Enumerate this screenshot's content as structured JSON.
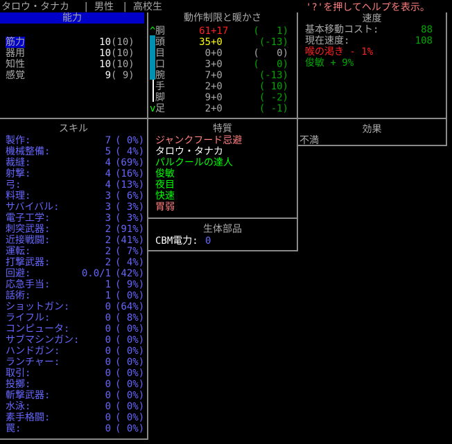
{
  "header": {
    "name": "タロウ・タナカ",
    "gender": "男性",
    "profession": "高校生",
    "separator": "|",
    "help": "'?'を押してヘルプを表示。"
  },
  "stats": {
    "title": "能力",
    "items": [
      {
        "label": "筋力",
        "value": "10",
        "base": "(10)",
        "selected": true
      },
      {
        "label": "器用",
        "value": "10",
        "base": "(10)"
      },
      {
        "label": "知性",
        "value": "10",
        "base": "(10)"
      },
      {
        "label": "感覚",
        "value": "9",
        "base": "( 9)"
      }
    ]
  },
  "encumbrance": {
    "title": "動作制限と暖かさ",
    "scroll_up": "^",
    "scroll_down": "v",
    "items": [
      {
        "part": "胴",
        "enc": "61",
        "layer": "+17",
        "warmth": "(   1)",
        "enc_color": "red",
        "warmth_color": "dgreen"
      },
      {
        "part": "頭",
        "enc": "35",
        "layer": "+0",
        "warmth": "(-13)",
        "enc_color": "yellow",
        "warmth_color": "dgreen"
      },
      {
        "part": "目",
        "enc": "0",
        "layer": "+0",
        "warmth": "(   0)",
        "enc_color": "gray",
        "warmth_color": "gray"
      },
      {
        "part": "口",
        "enc": "3",
        "layer": "+0",
        "warmth": "(   0)",
        "enc_color": "gray",
        "warmth_color": "dgreen"
      },
      {
        "part": "腕",
        "enc": "7",
        "layer": "+0",
        "warmth": "(-13)",
        "enc_color": "gray",
        "warmth_color": "dgreen"
      },
      {
        "part": "手",
        "enc": "2",
        "layer": "+0",
        "warmth": "( 10)",
        "enc_color": "gray",
        "warmth_color": "dgreen"
      },
      {
        "part": "脚",
        "enc": "9",
        "layer": "+0",
        "warmth": "( -2)",
        "enc_color": "gray",
        "warmth_color": "dgreen"
      },
      {
        "part": "足",
        "enc": "2",
        "layer": "+0",
        "warmth": "( -1)",
        "enc_color": "gray",
        "warmth_color": "dgreen"
      }
    ]
  },
  "speed": {
    "title": "速度",
    "base_label": "基本移動コスト:",
    "base_value": "88",
    "current_label": "現在速度:",
    "current_value": "108",
    "modifiers": [
      {
        "text": "喉の渇き - 1%",
        "color": "red"
      },
      {
        "text": "俊敏 + 9%",
        "color": "dgreen"
      }
    ]
  },
  "skills": {
    "title": "スキル",
    "items": [
      [
        "製作:",
        "7",
        "( 0%)"
      ],
      [
        "機械整備:",
        "5",
        "( 4%)"
      ],
      [
        "裁縫:",
        "4",
        "(69%)"
      ],
      [
        "射撃:",
        "4",
        "(16%)"
      ],
      [
        "弓:",
        "4",
        "(13%)"
      ],
      [
        "料理:",
        "3",
        "( 6%)"
      ],
      [
        "サバイバル:",
        "3",
        "( 3%)"
      ],
      [
        "電子工学:",
        "3",
        "( 3%)"
      ],
      [
        "刺突武器:",
        "2",
        "(91%)"
      ],
      [
        "近接戦闘:",
        "2",
        "(41%)"
      ],
      [
        "運転:",
        "2",
        "( 7%)"
      ],
      [
        "打撃武器:",
        "2",
        "( 4%)"
      ],
      [
        "回避:",
        "0.0/1",
        "(42%)"
      ],
      [
        "応急手当:",
        "1",
        "( 9%)"
      ],
      [
        "話術:",
        "1",
        "( 0%)"
      ],
      [
        "ショットガン:",
        "0",
        "(64%)"
      ],
      [
        "ライフル:",
        "0",
        "( 8%)"
      ],
      [
        "コンピュータ:",
        "0",
        "( 0%)"
      ],
      [
        "サブマシンガン:",
        "0",
        "( 0%)"
      ],
      [
        "ハンドガン:",
        "0",
        "( 0%)"
      ],
      [
        "ランチャー:",
        "0",
        "( 0%)"
      ],
      [
        "取引:",
        "0",
        "( 0%)"
      ],
      [
        "投擲:",
        "0",
        "( 0%)"
      ],
      [
        "斬撃武器:",
        "0",
        "( 0%)"
      ],
      [
        "水泳:",
        "0",
        "( 0%)"
      ],
      [
        "素手格闘:",
        "0",
        "( 0%)"
      ],
      [
        "罠:",
        "0",
        "( 0%)"
      ]
    ]
  },
  "traits": {
    "title": "特質",
    "items": [
      {
        "text": "ジャンクフード忌避",
        "color": "pink"
      },
      {
        "text": "タロウ・タナカ",
        "color": "white"
      },
      {
        "text": "パルクールの達人",
        "color": "lgreen"
      },
      {
        "text": "俊敏",
        "color": "lgreen"
      },
      {
        "text": "夜目",
        "color": "lgreen"
      },
      {
        "text": "快速",
        "color": "lgreen"
      },
      {
        "text": "胃弱",
        "color": "pink"
      }
    ]
  },
  "bionics": {
    "title": "生体部品",
    "power_label": "CBM電力:",
    "power_value": "0"
  },
  "effects": {
    "title": "効果",
    "items": [
      "不満"
    ]
  },
  "colors": {
    "stat_highlight": "#0000c8",
    "scrollbar": "#0090b0",
    "border": "#8a8a8a"
  }
}
